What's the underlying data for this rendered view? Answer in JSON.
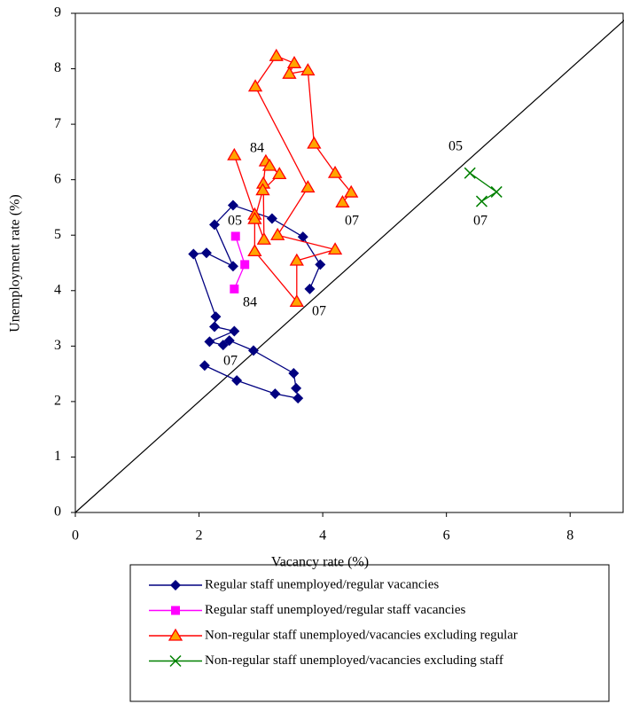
{
  "chart_data": {
    "type": "scatter",
    "xlabel": "Vacancy rate (%)",
    "ylabel": "Unemployment rate (%)",
    "xlim": [
      0,
      9
    ],
    "ylim": [
      0,
      9
    ],
    "xticks": [
      0,
      2,
      4,
      6,
      8
    ],
    "yticks": [
      0,
      1,
      2,
      3,
      4,
      5,
      6,
      7,
      8,
      9
    ],
    "series": [
      {
        "name": "Regular staff unemployed/regular vacancies",
        "color": "#000080",
        "marker": "diamond",
        "x": [
          3.79,
          3.96,
          3.68,
          3.18,
          2.55,
          2.25,
          2.55,
          2.12,
          1.91,
          2.27,
          2.25,
          2.57,
          2.17,
          2.39,
          2.49,
          2.88,
          3.53,
          3.57,
          3.6,
          3.23,
          2.61,
          2.09
        ],
        "values": [
          4.03,
          4.47,
          4.97,
          5.3,
          5.54,
          5.19,
          4.44,
          4.68,
          4.66,
          3.53,
          3.35,
          3.27,
          3.08,
          3.02,
          3.1,
          2.92,
          2.51,
          2.24,
          2.06,
          2.14,
          2.38,
          2.65
        ]
      },
      {
        "name": "Regular staff unemployed/regular staff vacancies",
        "color": "#ff00ff",
        "marker": "square",
        "x": [
          2.57,
          2.74,
          2.59
        ],
        "values": [
          4.03,
          4.47,
          4.98
        ]
      },
      {
        "name": "Non-regular staff unemployed/vacancies excluding regular",
        "color": "#ff0000",
        "marker": "triangle",
        "x": [
          2.57,
          2.9,
          3.05,
          3.04,
          3.08,
          3.14,
          3.3,
          3.03,
          2.9,
          2.9,
          3.58,
          3.58,
          4.2,
          3.27,
          3.76,
          2.91,
          3.25,
          3.54,
          3.46,
          3.76,
          3.86,
          4.2,
          4.46,
          4.32
        ],
        "values": [
          6.44,
          5.37,
          4.92,
          5.93,
          6.33,
          6.25,
          6.1,
          5.81,
          5.29,
          4.71,
          3.8,
          4.54,
          4.74,
          5.0,
          5.86,
          7.68,
          8.23,
          8.1,
          7.91,
          7.97,
          6.65,
          6.12,
          5.77,
          5.59
        ]
      },
      {
        "name": "Non-regular staff unemployed/vacancies excluding staff",
        "color": "#008000",
        "marker": "x",
        "x": [
          6.38,
          6.81,
          6.57
        ],
        "values": [
          6.12,
          5.78,
          5.61
        ]
      }
    ],
    "annotations": [
      "84",
      "05",
      "84",
      "07",
      "05",
      "07",
      "07",
      "07"
    ]
  }
}
